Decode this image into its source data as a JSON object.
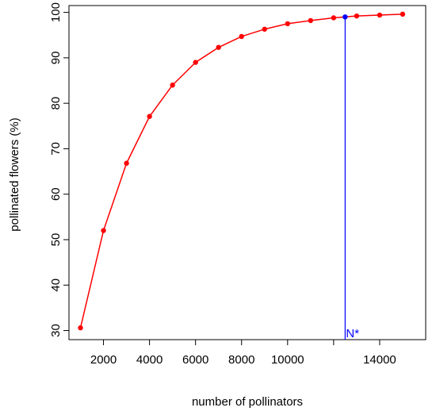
{
  "chart_data": {
    "type": "line",
    "title": "",
    "xlabel": "number of pollinators",
    "ylabel": "pollinated flowers (%)",
    "xlim": [
      500,
      16000
    ],
    "ylim": [
      28,
      101.5
    ],
    "xticks": [
      2000,
      4000,
      6000,
      8000,
      10000,
      12000,
      14000
    ],
    "xtick_labels": [
      "2000",
      "4000",
      "6000",
      "8000",
      "10000",
      "",
      "14000"
    ],
    "yticks": [
      30,
      40,
      50,
      60,
      70,
      80,
      90,
      100
    ],
    "ytick_labels": [
      "30",
      "40",
      "50",
      "60",
      "70",
      "80",
      "90",
      "100"
    ],
    "series": [
      {
        "color": "#ff0000",
        "points": [
          {
            "x": 1000,
            "y": 30.6
          },
          {
            "x": 2000,
            "y": 52.0
          },
          {
            "x": 3000,
            "y": 66.8
          },
          {
            "x": 4000,
            "y": 77.1
          },
          {
            "x": 5000,
            "y": 84.0
          },
          {
            "x": 6000,
            "y": 89.0
          },
          {
            "x": 7000,
            "y": 92.3
          },
          {
            "x": 8000,
            "y": 94.7
          },
          {
            "x": 9000,
            "y": 96.3
          },
          {
            "x": 10000,
            "y": 97.5
          },
          {
            "x": 11000,
            "y": 98.2
          },
          {
            "x": 12000,
            "y": 98.8
          },
          {
            "x": 13000,
            "y": 99.2
          },
          {
            "x": 14000,
            "y": 99.4
          },
          {
            "x": 15000,
            "y": 99.6
          }
        ]
      }
    ],
    "marker": {
      "label": "N*",
      "x": 12500,
      "y": 99.0,
      "color": "#0000ff"
    },
    "grid": false,
    "legend": "none"
  }
}
